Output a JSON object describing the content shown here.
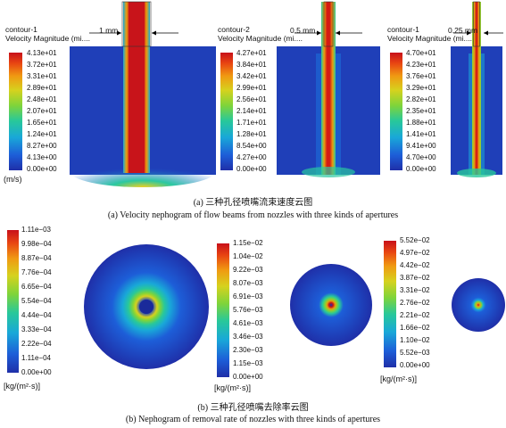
{
  "panel_a": {
    "contours": [
      {
        "title": "contour-1",
        "subtitle": "Velocity Magnitude (mi....",
        "aperture": "1 mm",
        "ticks": [
          "4.13e+01",
          "3.72e+01",
          "3.31e+01",
          "2.89e+01",
          "2.48e+01",
          "2.07e+01",
          "1.65e+01",
          "1.24e+01",
          "8.27e+00",
          "4.13e+00",
          "0.00e+00"
        ]
      },
      {
        "title": "contour-2",
        "subtitle": "Velocity Magnitude (mi....",
        "aperture": "0.5 mm",
        "ticks": [
          "4.27e+01",
          "3.84e+01",
          "3.42e+01",
          "2.99e+01",
          "2.56e+01",
          "2.14e+01",
          "1.71e+01",
          "1.28e+01",
          "8.54e+00",
          "4.27e+00",
          "0.00e+00"
        ]
      },
      {
        "title": "contour-1",
        "subtitle": "Velocity Magnitude (mi....",
        "aperture": "0.25 mm",
        "ticks": [
          "4.70e+01",
          "4.23e+01",
          "3.76e+01",
          "3.29e+01",
          "2.82e+01",
          "2.35e+01",
          "1.88e+01",
          "1.41e+01",
          "9.41e+00",
          "4.70e+00",
          "0.00e+00"
        ]
      }
    ],
    "unit": "(m/s)",
    "caption_cn": "(a)  三种孔径喷嘴流束速度云图",
    "caption_en": "(a)  Velocity nephogram of flow beams from nozzles with three kinds of apertures"
  },
  "panel_b": {
    "bars": [
      {
        "ticks": [
          "1.11e−03",
          "9.98e−04",
          "8.87e−04",
          "7.76e−04",
          "6.65e−04",
          "5.54e−04",
          "4.44e−04",
          "3.33e−04",
          "2.22e−04",
          "1.11e−04",
          "0.00e+00"
        ]
      },
      {
        "ticks": [
          "1.15e−02",
          "1.04e−02",
          "9.22e−03",
          "8.07e−03",
          "6.91e−03",
          "5.76e−03",
          "4.61e−03",
          "3.46e−03",
          "2.30e−03",
          "1.15e−03",
          "0.00e+00"
        ]
      },
      {
        "ticks": [
          "5.52e−02",
          "4.97e−02",
          "4.42e−02",
          "3.87e−02",
          "3.31e−02",
          "2.76e−02",
          "2.21e−02",
          "1.66e−02",
          "1.10e−02",
          "5.52e−03",
          "0.00e+00"
        ]
      }
    ],
    "unit": "[kg/(m²·s)]",
    "caption_cn": "(b)  三种孔径喷嘴去除率云图",
    "caption_en": "(b)  Nephogram of removal rate of nozzles with three kinds of apertures"
  }
}
